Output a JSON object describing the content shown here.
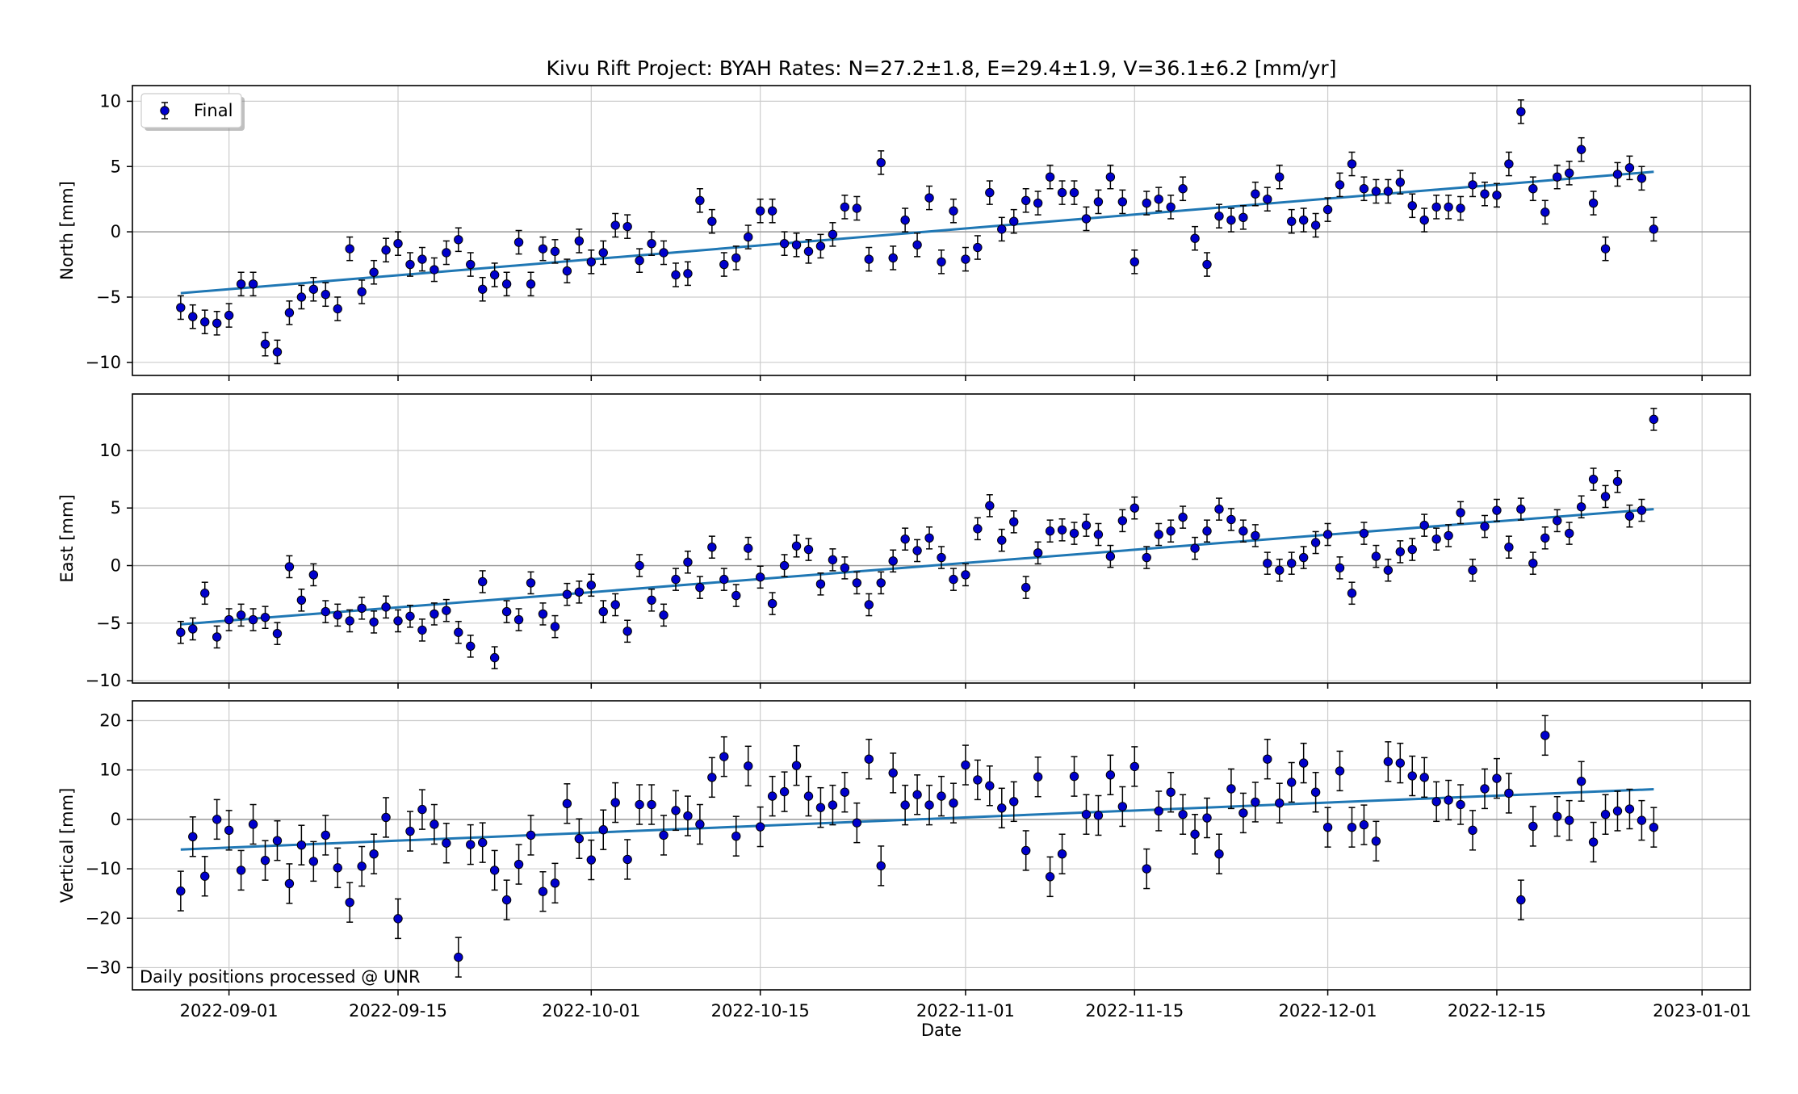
{
  "chart_data": {
    "type": "scatter",
    "title": "Kivu Rift Project: BYAH  Rates: N=27.2±1.8, E=29.4±1.9, V=36.1±6.2 [mm/yr]",
    "xlabel": "Date",
    "x_ticks": [
      "2022-09-01",
      "2022-09-15",
      "2022-10-01",
      "2022-10-15",
      "2022-11-01",
      "2022-11-15",
      "2022-12-01",
      "2022-12-15",
      "2023-01-01"
    ],
    "x_range": [
      "2022-08-24",
      "2023-01-05"
    ],
    "x_start": "2022-08-28",
    "legend": {
      "label": "Final",
      "placement": "top-left"
    },
    "annotation": "Daily positions processed @ UNR",
    "colors": {
      "marker": "#0000cc",
      "fit": "#1f77b4",
      "grid": "#cccccc"
    },
    "grid": true,
    "panels": [
      {
        "ylabel": "North [mm]",
        "ylim": [
          -11,
          11.2
        ],
        "yticks": [
          -10,
          -5,
          0,
          5,
          10
        ],
        "sigma": 0.9,
        "fit": {
          "start": -4.7,
          "end": 4.6
        },
        "values": [
          -5.8,
          -6.5,
          -6.9,
          -7.0,
          -6.4,
          -4.0,
          -4.0,
          -8.6,
          -9.2,
          -6.2,
          -5.0,
          -4.4,
          -4.8,
          -5.9,
          -1.3,
          -4.6,
          -3.1,
          -1.4,
          -0.9,
          -2.5,
          -2.1,
          -2.9,
          -1.6,
          -0.6,
          -2.5,
          -4.4,
          -3.3,
          -4.0,
          -0.8,
          -4.0,
          -1.3,
          -1.5,
          -3.0,
          -0.7,
          -2.3,
          -1.6,
          0.5,
          0.4,
          -2.2,
          -0.9,
          -1.6,
          -3.3,
          -3.2,
          2.4,
          0.8,
          -2.5,
          -2.0,
          -0.4,
          1.6,
          1.6,
          -0.9,
          -1.0,
          -1.5,
          -1.1,
          -0.2,
          1.9,
          1.8,
          -2.1,
          5.3,
          -2.0,
          0.9,
          -1.0,
          2.6,
          -2.3,
          1.6,
          -2.1,
          -1.2,
          3.0,
          0.2,
          0.8,
          2.4,
          2.2,
          4.2,
          3.0,
          3.0,
          1.0,
          2.3,
          4.2,
          2.3,
          -2.3,
          2.2,
          2.5,
          1.9,
          3.3,
          -0.5,
          -2.5,
          1.2,
          0.9,
          1.1,
          2.9,
          2.5,
          4.2,
          0.8,
          0.9,
          0.5,
          1.7,
          3.6,
          5.2,
          3.3,
          3.1,
          3.1,
          3.8,
          2.0,
          0.9,
          1.9,
          1.9,
          1.8,
          3.6,
          2.9,
          2.8,
          5.2,
          9.2,
          3.3,
          1.5,
          4.2,
          4.5,
          6.3,
          2.2,
          -1.3,
          4.4,
          4.9,
          4.1,
          0.2
        ]
      },
      {
        "ylabel": "East [mm]",
        "ylim": [
          -10.2,
          14.9
        ],
        "yticks": [
          -10,
          -5,
          0,
          5,
          10
        ],
        "sigma": 0.95,
        "fit": {
          "start": -5.1,
          "end": 4.9
        },
        "values": [
          -5.8,
          -5.5,
          -2.4,
          -6.2,
          -4.7,
          -4.3,
          -4.7,
          -4.5,
          -5.9,
          -0.1,
          -3.0,
          -0.8,
          -4.0,
          -4.3,
          -4.8,
          -3.7,
          -4.9,
          -3.6,
          -4.8,
          -4.4,
          -5.6,
          -4.2,
          -3.9,
          -5.8,
          -7.0,
          -1.4,
          -8.0,
          -4.0,
          -4.7,
          -1.5,
          -4.2,
          -5.3,
          -2.5,
          -2.3,
          -1.7,
          -4.0,
          -3.4,
          -5.7,
          0.0,
          -3.0,
          -4.3,
          -1.2,
          0.3,
          -1.9,
          1.6,
          -1.2,
          -2.6,
          1.5,
          -1.0,
          -3.3,
          0.0,
          1.7,
          1.4,
          -1.6,
          0.5,
          -0.2,
          -1.5,
          -3.4,
          -1.5,
          0.4,
          2.3,
          1.3,
          2.4,
          0.7,
          -1.2,
          -0.8,
          3.2,
          5.2,
          2.2,
          3.8,
          -1.9,
          1.1,
          3.0,
          3.1,
          2.8,
          3.5,
          2.7,
          0.8,
          3.9,
          5.0,
          0.7,
          2.7,
          3.0,
          4.2,
          1.5,
          3.0,
          4.9,
          4.0,
          3.0,
          2.6,
          0.2,
          -0.4,
          0.2,
          0.7,
          2.0,
          2.7,
          -0.2,
          -2.4,
          2.8,
          0.8,
          -0.4,
          1.2,
          1.4,
          3.5,
          2.3,
          2.6,
          4.6,
          -0.4,
          3.4,
          4.8,
          1.6,
          4.9,
          0.2,
          2.4,
          3.9,
          2.8,
          5.1,
          7.5,
          6.0,
          7.3,
          4.3,
          4.8,
          12.7
        ]
      },
      {
        "ylabel": "Vertical [mm]",
        "ylim": [
          -34.5,
          24
        ],
        "yticks": [
          -30,
          -20,
          -10,
          0,
          10,
          20
        ],
        "sigma": 4.0,
        "fit": {
          "start": -6.1,
          "end": 6.1
        },
        "values": [
          -14.5,
          -3.5,
          -11.5,
          0.0,
          -2.2,
          -10.3,
          -1.0,
          -8.3,
          -4.3,
          -13.0,
          -5.2,
          -8.5,
          -3.2,
          -9.8,
          -16.8,
          -9.5,
          -7.0,
          0.4,
          -20.1,
          -2.4,
          2.0,
          -1.0,
          -4.8,
          -27.9,
          -5.1,
          -4.7,
          -10.3,
          -16.3,
          -9.1,
          -3.2,
          -14.6,
          -12.9,
          3.2,
          -3.9,
          -8.2,
          -2.1,
          3.4,
          -8.1,
          3.0,
          3.0,
          -3.2,
          1.8,
          0.7,
          -1.0,
          8.5,
          12.7,
          -3.4,
          10.8,
          -1.5,
          4.7,
          5.6,
          10.9,
          4.7,
          2.4,
          2.9,
          5.5,
          -0.7,
          12.2,
          -9.4,
          9.4,
          2.9,
          5.0,
          2.9,
          4.7,
          3.3,
          11.0,
          8.0,
          6.8,
          2.3,
          3.6,
          -6.3,
          8.6,
          -11.6,
          -7.0,
          8.7,
          1.0,
          0.8,
          9.0,
          2.6,
          10.7,
          -10.0,
          1.7,
          5.5,
          1.0,
          -3.0,
          0.3,
          -7.0,
          6.2,
          1.3,
          3.5,
          12.2,
          3.3,
          7.5,
          11.4,
          5.5,
          -1.6,
          9.8,
          -1.6,
          -1.1,
          -4.4,
          11.7,
          11.4,
          8.8,
          8.5,
          3.6,
          3.9,
          3.0,
          -2.2,
          6.2,
          8.3,
          5.3,
          -16.3,
          -1.4,
          17.0,
          0.6,
          -0.2,
          7.7,
          -4.6,
          1.0,
          1.7,
          2.1,
          -0.2,
          -1.6
        ]
      }
    ]
  }
}
